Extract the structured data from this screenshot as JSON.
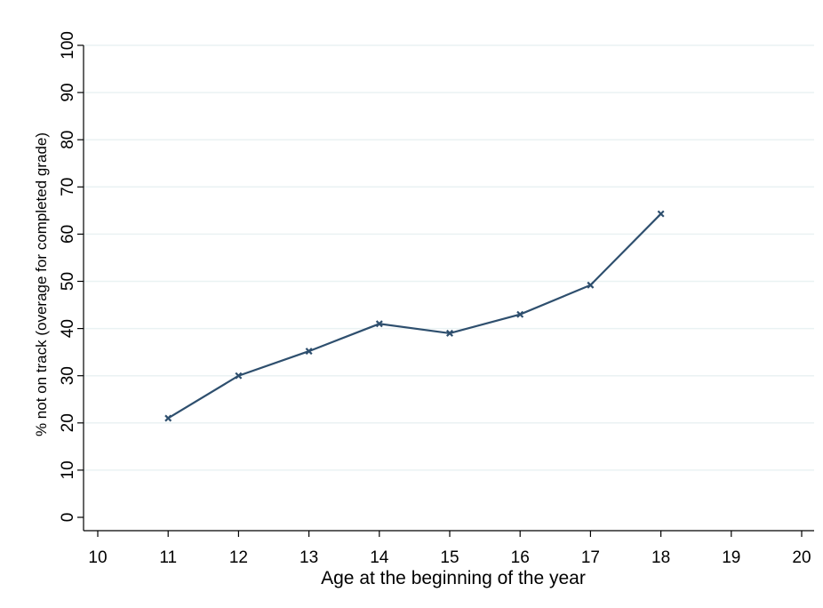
{
  "chart_data": {
    "type": "line",
    "title": "",
    "xlabel": "Age at the beginning of the year",
    "ylabel": "% not on track (overage for completed grade)",
    "x": [
      11,
      12,
      13,
      14,
      15,
      16,
      17,
      18
    ],
    "series": [
      {
        "values": [
          21,
          30,
          35.2,
          41,
          39,
          43,
          49.2,
          64.3
        ]
      }
    ],
    "xlim": [
      10,
      20
    ],
    "ylim": [
      0,
      100
    ],
    "xticks": [
      "10",
      "11",
      "12",
      "13",
      "14",
      "15",
      "16",
      "17",
      "18",
      "19",
      "20"
    ],
    "yticks": [
      "0",
      "10",
      "20",
      "30",
      "40",
      "50",
      "60",
      "70",
      "80",
      "90",
      "100"
    ],
    "grid": "horizontal",
    "marker": "x",
    "colors": {
      "line": "#2e4f6e",
      "grid": "#eaf2f3",
      "axis": "#000000"
    }
  }
}
